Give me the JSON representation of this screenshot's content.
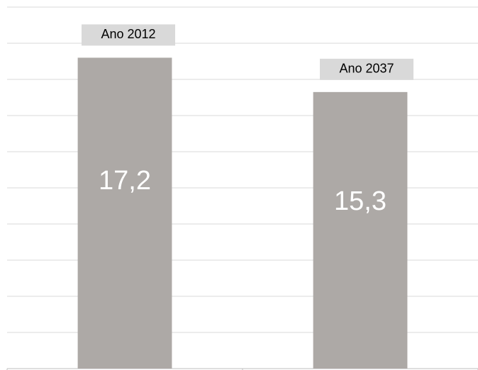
{
  "chart_data": {
    "type": "bar",
    "categories": [
      "Ano 2012",
      "Ano 2037"
    ],
    "values": [
      17.2,
      15.3
    ],
    "value_labels": [
      "17,2",
      "15,3"
    ],
    "color": "#ada9a6",
    "ylim": [
      0,
      20
    ],
    "yticks": [
      0,
      2,
      4,
      6,
      8,
      10,
      12,
      14,
      16,
      18,
      20
    ],
    "grid": true
  }
}
